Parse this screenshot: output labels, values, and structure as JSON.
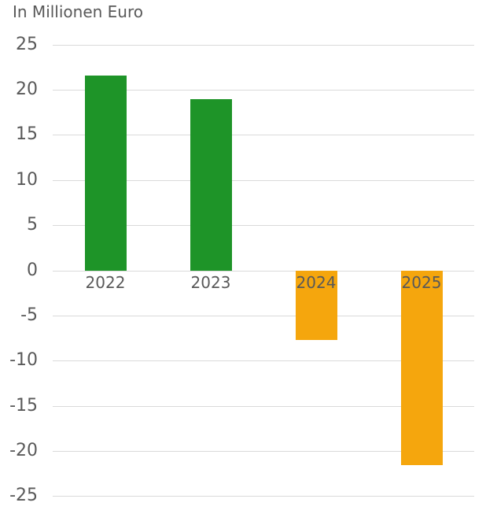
{
  "title": "In Millionen Euro",
  "colors": {
    "positive_bar": "#1E9428",
    "negative_bar": "#F5A60D",
    "text": "#595959",
    "gridline": "#DADADA",
    "background": "#FFFFFF"
  },
  "chart_data": {
    "type": "bar",
    "title": "In Millionen Euro",
    "categories": [
      "2022",
      "2023",
      "2024",
      "2025"
    ],
    "values": [
      21.6,
      19.0,
      -7.7,
      -21.5
    ],
    "bar_colors": [
      "#1E9428",
      "#1E9428",
      "#F5A60D",
      "#F5A60D"
    ],
    "xlabel": "",
    "ylabel": "In Millionen Euro",
    "ylim": [
      -25,
      25
    ],
    "yticks": [
      25,
      20,
      15,
      10,
      5,
      0,
      -5,
      -10,
      -15,
      -20,
      -25
    ],
    "grid": true,
    "legend": false,
    "category_label_position": "below-zero-line"
  }
}
